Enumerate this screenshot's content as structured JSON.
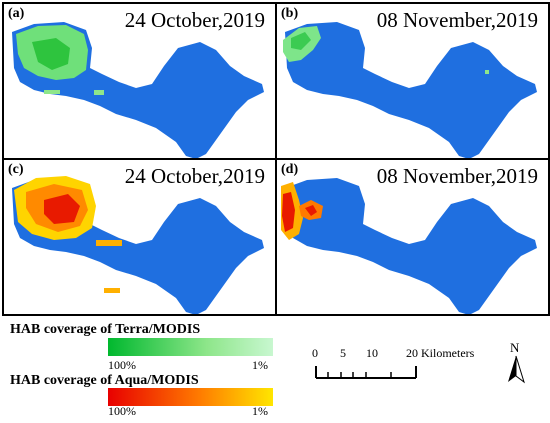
{
  "panels": [
    {
      "letter": "(a)",
      "date": "24 October,2019",
      "sensor": "Terra/MODIS"
    },
    {
      "letter": "(b)",
      "date": "08 November,2019",
      "sensor": "Terra/MODIS"
    },
    {
      "letter": "(c)",
      "date": "24 October,2019",
      "sensor": "Aqua/MODIS"
    },
    {
      "letter": "(d)",
      "date": "08 November,2019",
      "sensor": "Aqua/MODIS"
    }
  ],
  "legend": {
    "terra": {
      "title": "HAB coverage of Terra/MODIS",
      "min_label": "100%",
      "max_label": "1%"
    },
    "aqua": {
      "title": "HAB coverage of Aqua/MODIS",
      "min_label": "100%",
      "max_label": "1%"
    }
  },
  "scale_bar": {
    "ticks": [
      "0",
      "5",
      "10",
      "20 Kilometers"
    ]
  },
  "north_arrow": {
    "label": "N"
  },
  "colors": {
    "water": "#1f6fe0",
    "terra_ramp": [
      "#00b82e",
      "#8ee68a",
      "#c8f7d0"
    ],
    "aqua_ramp": [
      "#e80000",
      "#ff7a00",
      "#ffe600"
    ]
  }
}
